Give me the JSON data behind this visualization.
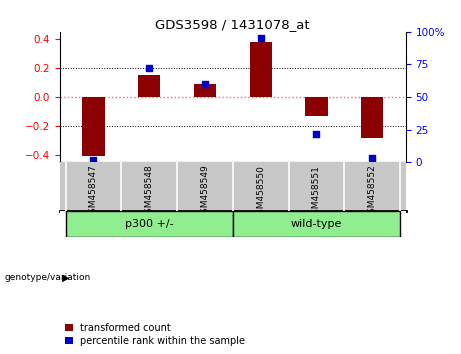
{
  "title": "GDS3598 / 1431078_at",
  "samples": [
    "GSM458547",
    "GSM458548",
    "GSM458549",
    "GSM458550",
    "GSM458551",
    "GSM458552"
  ],
  "red_bars": [
    -0.41,
    0.15,
    0.09,
    0.38,
    -0.13,
    -0.28
  ],
  "blue_dots": [
    2,
    72,
    60,
    95,
    22,
    3
  ],
  "group1_label": "p300 +/-",
  "group1_indices": [
    0,
    1,
    2
  ],
  "group2_label": "wild-type",
  "group2_indices": [
    3,
    4,
    5
  ],
  "group_label": "genotype/variation",
  "ylim": [
    -0.45,
    0.45
  ],
  "y2lim": [
    0,
    100
  ],
  "yticks": [
    -0.4,
    -0.2,
    0,
    0.2,
    0.4
  ],
  "y2ticks": [
    0,
    25,
    50,
    75,
    100
  ],
  "bar_color": "#8B0000",
  "dot_color": "#0000CD",
  "background_color": "#FFFFFF",
  "label_bg_color": "#C8C8C8",
  "group_bg_color": "#90EE90",
  "legend_red": "transformed count",
  "legend_blue": "percentile rank within the sample",
  "zero_line_color": "#FF6666",
  "grid_color": "#000000",
  "bar_width": 0.4
}
